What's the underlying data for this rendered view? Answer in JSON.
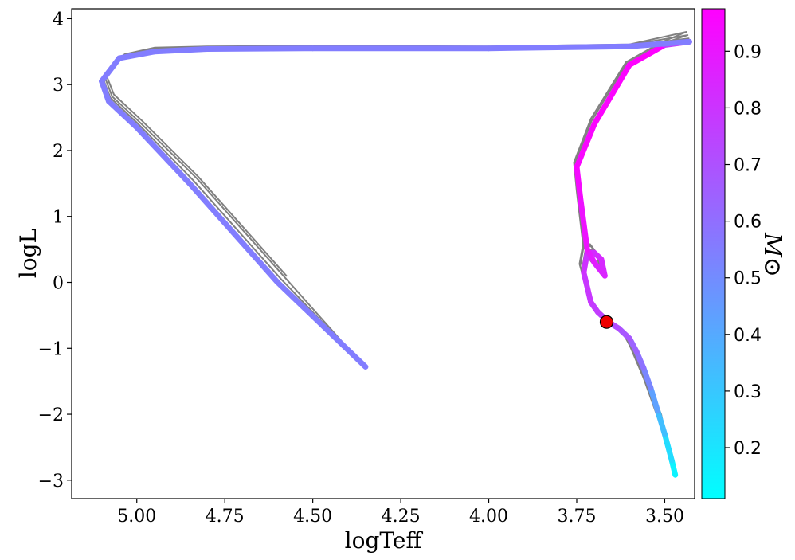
{
  "chart_data": {
    "type": "line",
    "xlabel": "logTeff",
    "ylabel": "logL",
    "x_inverted": true,
    "xlim": [
      5.185,
      3.415
    ],
    "ylim": [
      -3.28,
      4.15
    ],
    "xticks": [
      5.0,
      4.75,
      4.5,
      4.25,
      4.0,
      3.75,
      3.5
    ],
    "xtick_labels": [
      "5.00",
      "4.75",
      "4.50",
      "4.25",
      "4.00",
      "3.75",
      "3.50"
    ],
    "yticks": [
      -3,
      -2,
      -1,
      0,
      1,
      2,
      3,
      4
    ],
    "ytick_labels": [
      "−3",
      "−2",
      "−1",
      "0",
      "1",
      "2",
      "3",
      "4"
    ],
    "grid": false,
    "colorbar": {
      "label": "M⊙",
      "range": [
        0.11,
        0.975
      ],
      "colormap": "cool",
      "color_low": "#00ffff",
      "color_high": "#ff00ff",
      "ticks": [
        0.2,
        0.3,
        0.4,
        0.5,
        0.6,
        0.7,
        0.8,
        0.9
      ],
      "tick_labels": [
        "0.2",
        "0.3",
        "0.4",
        "0.5",
        "0.6",
        "0.7",
        "0.8",
        "0.9"
      ]
    },
    "gray_line_color": "#808080",
    "gray_tracks": [
      {
        "x": [
          3.47,
          3.48,
          3.5,
          3.52,
          3.54,
          3.56,
          3.58,
          3.6,
          3.63,
          3.66,
          3.69,
          3.71,
          3.73,
          3.72,
          3.7,
          3.68,
          3.67,
          3.7,
          3.72,
          3.74,
          3.75,
          3.7,
          3.6,
          3.5,
          3.43,
          3.6,
          4.0,
          4.5,
          4.8,
          4.95,
          5.05,
          5.1,
          5.08,
          5.0,
          4.85,
          4.6,
          4.35
        ],
        "y": [
          -2.92,
          -2.7,
          -2.3,
          -1.95,
          -1.6,
          -1.3,
          -1.05,
          -0.85,
          -0.7,
          -0.6,
          -0.45,
          -0.3,
          0.15,
          0.45,
          0.45,
          0.35,
          0.1,
          0.3,
          0.5,
          1.3,
          1.75,
          2.4,
          3.3,
          3.6,
          3.65,
          3.58,
          3.55,
          3.55,
          3.54,
          3.5,
          3.4,
          3.05,
          2.75,
          2.35,
          1.5,
          0.0,
          -1.28
        ]
      },
      {
        "x": [
          3.475,
          3.49,
          3.51,
          3.53,
          3.55,
          3.57,
          3.59,
          3.61,
          3.64,
          3.665,
          3.695,
          3.715,
          3.735,
          3.725,
          3.705,
          3.69,
          3.675,
          3.705,
          3.725,
          3.745,
          3.752,
          3.705,
          3.605,
          3.505,
          3.432,
          3.6,
          4.0,
          4.5,
          4.8,
          4.95,
          5.045,
          5.095,
          5.075,
          4.995,
          4.84,
          4.59,
          4.36
        ],
        "y": [
          -2.85,
          -2.55,
          -2.15,
          -1.85,
          -1.55,
          -1.25,
          -1.0,
          -0.8,
          -0.65,
          -0.55,
          -0.4,
          -0.2,
          0.2,
          0.5,
          0.5,
          0.4,
          0.15,
          0.3,
          0.52,
          1.32,
          1.78,
          2.42,
          3.3,
          3.58,
          3.7,
          3.59,
          3.56,
          3.57,
          3.56,
          3.52,
          3.42,
          3.08,
          2.8,
          2.4,
          1.55,
          0.05,
          -1.23
        ]
      },
      {
        "x": [
          3.48,
          3.495,
          3.515,
          3.535,
          3.555,
          3.575,
          3.595,
          3.615,
          3.645,
          3.67,
          3.7,
          3.72,
          3.74,
          3.73,
          3.71,
          3.695,
          3.68,
          3.71,
          3.73,
          3.748,
          3.755,
          3.708,
          3.608,
          3.508,
          3.435,
          3.6,
          4.0,
          4.5,
          4.8,
          4.95,
          5.04,
          5.09,
          5.07,
          4.99,
          4.83,
          4.58,
          4.37
        ],
        "y": [
          -2.75,
          -2.45,
          -2.1,
          -1.8,
          -1.5,
          -1.22,
          -0.98,
          -0.78,
          -0.62,
          -0.52,
          -0.38,
          -0.15,
          0.25,
          0.55,
          0.55,
          0.45,
          0.18,
          0.32,
          0.55,
          1.35,
          1.8,
          2.45,
          3.32,
          3.62,
          3.75,
          3.6,
          3.57,
          3.58,
          3.57,
          3.54,
          3.44,
          3.1,
          2.82,
          2.42,
          1.58,
          0.08,
          -1.18
        ]
      },
      {
        "x": [
          3.49,
          3.5,
          3.52,
          3.54,
          3.56,
          3.58,
          3.6,
          3.62,
          3.65,
          3.672,
          3.702,
          3.722,
          3.742,
          3.732,
          3.712,
          3.698,
          3.682,
          3.712,
          3.732,
          3.75,
          3.758,
          3.71,
          3.61,
          3.51,
          3.438,
          3.6,
          4.0,
          4.5,
          4.8,
          4.95,
          5.035,
          5.085,
          5.065,
          4.985,
          4.825,
          4.575
        ],
        "y": [
          -2.6,
          -2.35,
          -2.05,
          -1.75,
          -1.45,
          -1.2,
          -0.95,
          -0.75,
          -0.6,
          -0.5,
          -0.35,
          -0.1,
          0.28,
          0.58,
          0.58,
          0.48,
          0.2,
          0.34,
          0.58,
          1.38,
          1.82,
          2.48,
          3.34,
          3.64,
          3.8,
          3.61,
          3.58,
          3.59,
          3.58,
          3.56,
          3.46,
          3.12,
          2.85,
          2.45,
          1.6,
          0.1
        ]
      },
      {
        "x": [
          3.5,
          3.51,
          3.53,
          3.55,
          3.57,
          3.59,
          3.61,
          3.63,
          3.655
        ],
        "y": [
          -2.25,
          -2.0,
          -1.75,
          -1.5,
          -1.25,
          -1.05,
          -0.85,
          -0.7,
          -0.58
        ]
      }
    ],
    "mass_track": {
      "x": [
        3.47,
        3.48,
        3.5,
        3.52,
        3.54,
        3.56,
        3.58,
        3.6,
        3.63,
        3.66,
        3.69,
        3.71,
        3.73,
        3.72,
        3.7,
        3.68,
        3.67,
        3.7,
        3.72,
        3.74,
        3.75,
        3.7,
        3.6,
        3.5,
        3.43,
        3.6,
        4.0,
        4.5,
        4.8,
        4.95,
        5.05,
        5.1,
        5.08,
        5.0,
        4.85,
        4.6,
        4.35
      ],
      "y": [
        -2.92,
        -2.7,
        -2.3,
        -1.95,
        -1.6,
        -1.3,
        -1.05,
        -0.85,
        -0.7,
        -0.6,
        -0.45,
        -0.3,
        0.15,
        0.45,
        0.45,
        0.35,
        0.1,
        0.3,
        0.5,
        1.3,
        1.75,
        2.4,
        3.3,
        3.6,
        3.65,
        3.58,
        3.55,
        3.55,
        3.54,
        3.5,
        3.4,
        3.05,
        2.75,
        2.35,
        1.5,
        0.0,
        -1.28
      ],
      "mass": [
        0.12,
        0.18,
        0.28,
        0.38,
        0.48,
        0.56,
        0.62,
        0.66,
        0.7,
        0.73,
        0.76,
        0.78,
        0.8,
        0.81,
        0.82,
        0.83,
        0.84,
        0.86,
        0.9,
        0.93,
        0.95,
        0.96,
        0.97,
        0.97,
        0.55,
        0.55,
        0.55,
        0.55,
        0.55,
        0.55,
        0.55,
        0.55,
        0.55,
        0.55,
        0.55,
        0.55,
        0.55
      ]
    },
    "marker": {
      "x": 3.665,
      "y": -0.6,
      "color": "#ee0000",
      "edge": "#000000"
    }
  }
}
